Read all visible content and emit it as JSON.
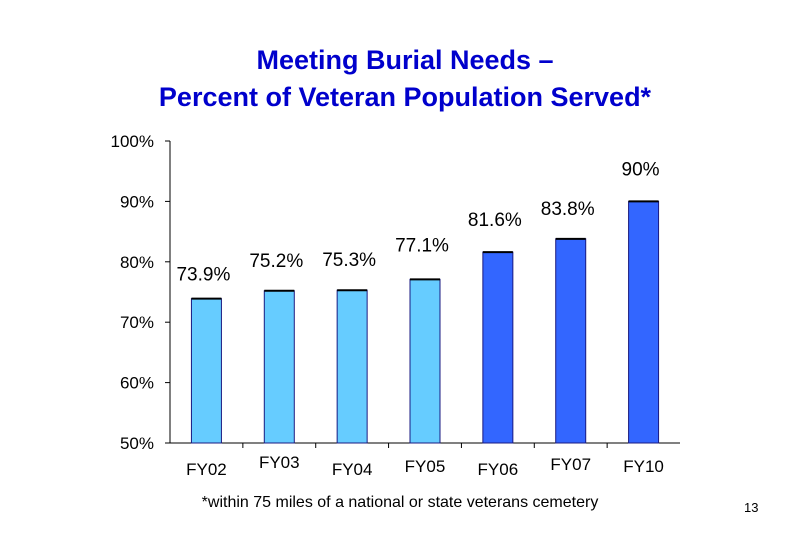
{
  "slide": {
    "title_line1": "Meeting Burial Needs –",
    "title_line2": "Percent of Veteran Population Served*",
    "footnote": "*within 75 miles of a national or state veterans cemetery",
    "page_number": "13"
  },
  "colors": {
    "title": "#0000cc",
    "light_bar": "#66ccff",
    "dark_bar": "#3366ff",
    "axis": "#000000"
  },
  "chart_data": {
    "type": "bar",
    "title": "Meeting Burial Needs – Percent of Veteran Population Served*",
    "categories": [
      "FY02",
      "FY03",
      "FY04",
      "FY05",
      "FY06",
      "FY07",
      "FY10"
    ],
    "values": [
      73.9,
      75.2,
      75.3,
      77.1,
      81.6,
      83.8,
      90
    ],
    "data_labels": [
      "73.9%",
      "75.2%",
      "75.3%",
      "77.1%",
      "81.6%",
      "83.8%",
      "90%"
    ],
    "bar_colors": [
      "#66ccff",
      "#66ccff",
      "#66ccff",
      "#66ccff",
      "#3366ff",
      "#3366ff",
      "#3366ff"
    ],
    "ylim": [
      50,
      100
    ],
    "yticks": [
      50,
      60,
      70,
      80,
      90,
      100
    ],
    "ytick_labels": [
      "50%",
      "60%",
      "70%",
      "80%",
      "90%",
      "100%"
    ],
    "xlabel": "",
    "ylabel": "",
    "grid": false,
    "legend": "none"
  }
}
